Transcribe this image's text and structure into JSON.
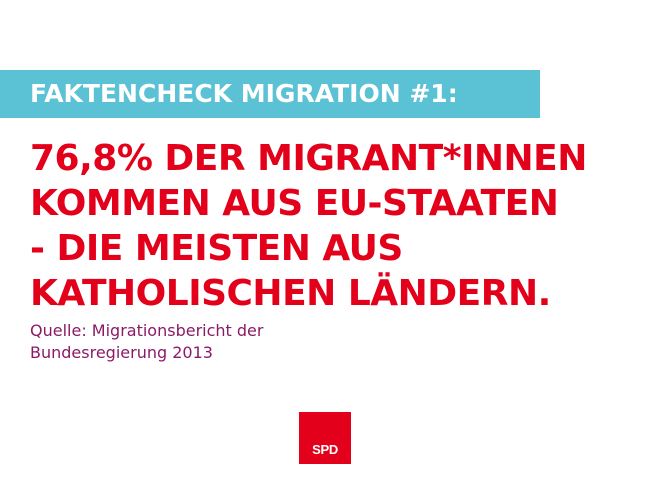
{
  "banner": {
    "text": "FAKTENCHECK MIGRATION #1:"
  },
  "headline": {
    "lines": [
      "76,8% DER MIGRANT*INNEN",
      "KOMMEN AUS EU-STAATEN",
      "- DIE MEISTEN AUS",
      "KATHOLISCHEN LÄNDERN."
    ]
  },
  "source": {
    "lines": [
      "Quelle: Migrationsbericht der",
      "Bundesregierung 2013"
    ]
  },
  "logo": {
    "text": "SPD"
  },
  "colors": {
    "banner_bg": "#5bc2d6",
    "headline": "#e3001a",
    "source": "#8b1a66",
    "logo_bg": "#e3001a"
  }
}
